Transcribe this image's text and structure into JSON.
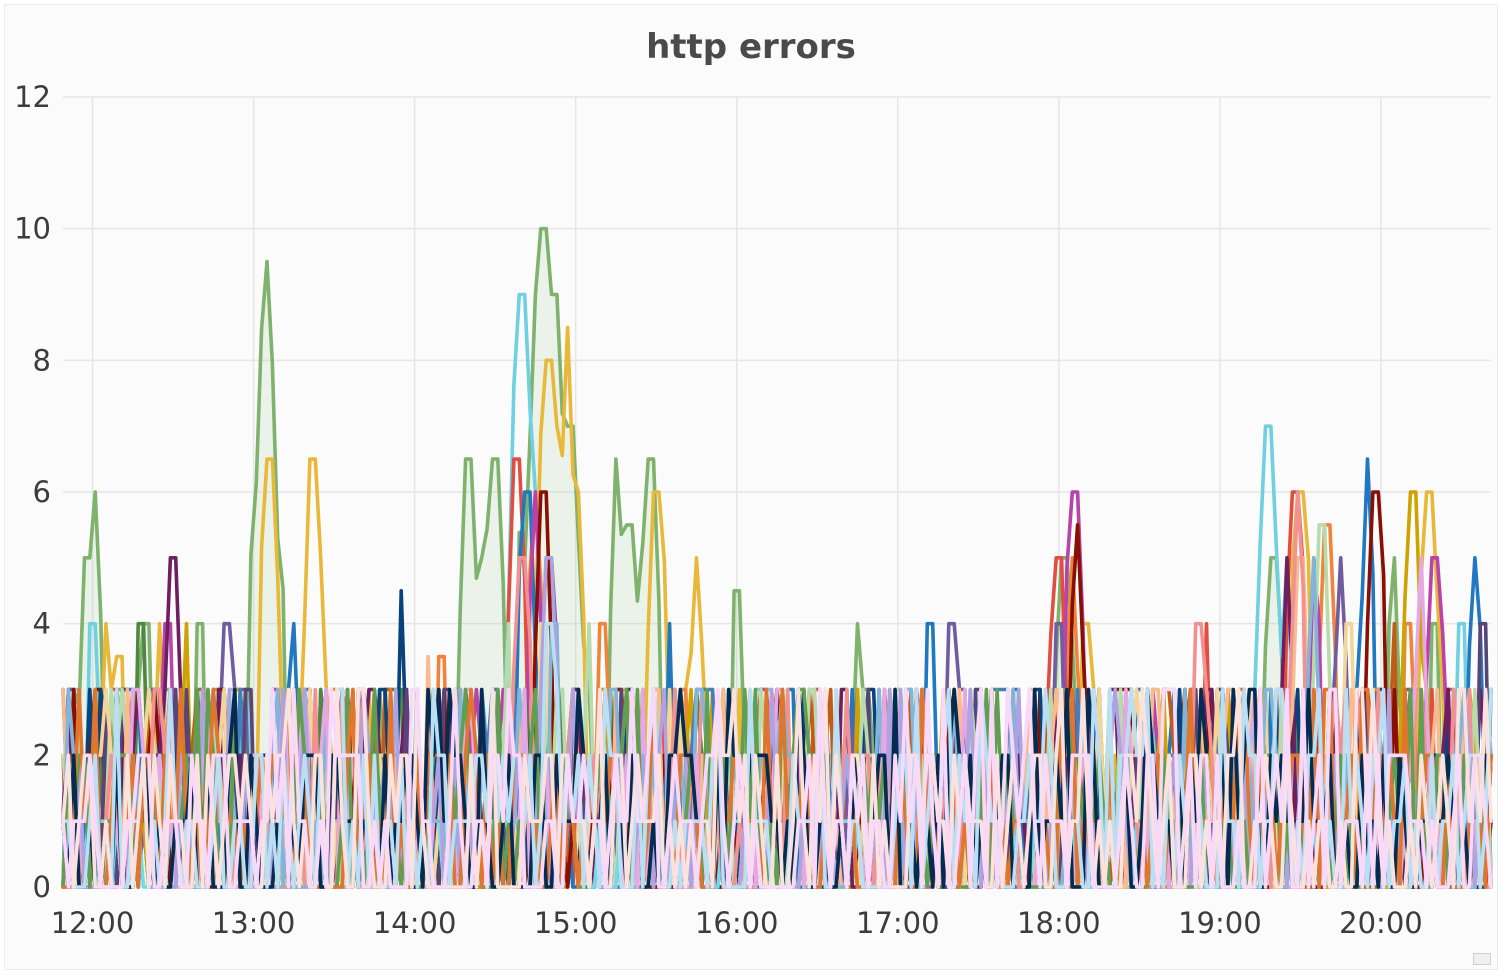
{
  "panel": {
    "title": "http errors"
  },
  "chart_data": {
    "type": "line",
    "title": "http errors",
    "xlabel": "",
    "ylabel": "",
    "ylim": [
      0,
      12
    ],
    "yticks": [
      0,
      2,
      4,
      6,
      8,
      10,
      12
    ],
    "xlim": [
      "11:49",
      "20:41"
    ],
    "xticks": [
      "12:00",
      "13:00",
      "14:00",
      "15:00",
      "16:00",
      "17:00",
      "18:00",
      "19:00",
      "20:00"
    ],
    "grid": true,
    "legend": "none",
    "series_count_note_hidden": true,
    "series": [
      {
        "color": "#7eb26d",
        "fill": true,
        "peaks": [
          [
            "11:53",
            3
          ],
          [
            "11:55",
            2
          ],
          [
            "11:58",
            5
          ],
          [
            "12:01",
            6
          ],
          [
            "12:03",
            4
          ],
          [
            "12:10",
            3
          ],
          [
            "12:20",
            4
          ],
          [
            "12:30",
            3
          ],
          [
            "12:40",
            4
          ],
          [
            "12:50",
            2
          ],
          [
            "13:05",
            9.5
          ],
          [
            "13:10",
            3
          ],
          [
            "14:20",
            6.5
          ],
          [
            "14:25",
            5
          ],
          [
            "14:30",
            6.5
          ],
          [
            "14:45",
            9
          ],
          [
            "14:48",
            10
          ],
          [
            "14:52",
            9
          ],
          [
            "14:58",
            7
          ],
          [
            "15:05",
            3
          ],
          [
            "15:15",
            6.5
          ],
          [
            "15:20",
            5.5
          ],
          [
            "15:28",
            6.5
          ],
          [
            "15:35",
            3
          ],
          [
            "16:00",
            4.5
          ],
          [
            "16:05",
            3
          ],
          [
            "16:45",
            4
          ],
          [
            "18:02",
            5
          ],
          [
            "19:20",
            5
          ],
          [
            "20:05",
            5
          ],
          [
            "20:20",
            4
          ]
        ]
      },
      {
        "color": "#eab839",
        "fill": false,
        "peaks": [
          [
            "12:05",
            4
          ],
          [
            "12:10",
            3.5
          ],
          [
            "12:25",
            4
          ],
          [
            "13:06",
            6.5
          ],
          [
            "13:15",
            3
          ],
          [
            "13:22",
            6.5
          ],
          [
            "13:25",
            5
          ],
          [
            "14:50",
            8
          ],
          [
            "14:53",
            7
          ],
          [
            "14:57",
            8.5
          ],
          [
            "15:00",
            6
          ],
          [
            "15:30",
            6
          ],
          [
            "15:45",
            5
          ],
          [
            "17:00",
            3
          ],
          [
            "18:10",
            4
          ],
          [
            "19:30",
            6
          ],
          [
            "20:18",
            6
          ]
        ]
      },
      {
        "color": "#6ed0e0",
        "fill": false,
        "peaks": [
          [
            "12:00",
            4
          ],
          [
            "12:20",
            1
          ],
          [
            "14:40",
            9
          ],
          [
            "14:45",
            6
          ],
          [
            "16:10",
            3
          ],
          [
            "17:10",
            3
          ],
          [
            "18:35",
            3
          ],
          [
            "19:18",
            7
          ],
          [
            "19:25",
            5
          ],
          [
            "20:30",
            4
          ]
        ]
      },
      {
        "color": "#ef843c",
        "fill": false,
        "peaks": [
          [
            "12:15",
            3
          ],
          [
            "13:30",
            3
          ],
          [
            "14:10",
            3.5
          ],
          [
            "14:45",
            6
          ],
          [
            "15:10",
            4
          ],
          [
            "15:40",
            3
          ],
          [
            "17:20",
            2
          ],
          [
            "18:05",
            5
          ],
          [
            "18:50",
            3
          ],
          [
            "19:40",
            5.5
          ],
          [
            "20:10",
            4
          ]
        ]
      },
      {
        "color": "#e24d42",
        "fill": false,
        "peaks": [
          [
            "12:08",
            3
          ],
          [
            "12:45",
            3
          ],
          [
            "14:38",
            6.5
          ],
          [
            "15:25",
            3
          ],
          [
            "16:30",
            3
          ],
          [
            "18:00",
            5
          ],
          [
            "18:55",
            4
          ],
          [
            "19:28",
            6
          ],
          [
            "20:25",
            3
          ]
        ]
      },
      {
        "color": "#1f78c1",
        "fill": false,
        "peaks": [
          [
            "12:12",
            3
          ],
          [
            "12:55",
            2
          ],
          [
            "13:15",
            4
          ],
          [
            "14:42",
            6
          ],
          [
            "15:35",
            4
          ],
          [
            "16:20",
            3
          ],
          [
            "17:12",
            4
          ],
          [
            "18:30",
            3
          ],
          [
            "19:05",
            3
          ],
          [
            "19:55",
            6.5
          ],
          [
            "20:35",
            5
          ]
        ]
      },
      {
        "color": "#ba43a9",
        "fill": false,
        "peaks": [
          [
            "12:28",
            4
          ],
          [
            "13:08",
            3
          ],
          [
            "14:45",
            6
          ],
          [
            "15:30",
            3
          ],
          [
            "16:10",
            3
          ],
          [
            "18:06",
            6
          ],
          [
            "19:35",
            5
          ],
          [
            "20:20",
            5
          ]
        ]
      },
      {
        "color": "#705da0",
        "fill": false,
        "peaks": [
          [
            "12:02",
            2
          ],
          [
            "12:50",
            4
          ],
          [
            "14:15",
            3
          ],
          [
            "14:50",
            5
          ],
          [
            "16:45",
            3
          ],
          [
            "17:20",
            4
          ],
          [
            "18:00",
            4
          ],
          [
            "19:45",
            5
          ]
        ]
      },
      {
        "color": "#508642",
        "fill": false,
        "peaks": [
          [
            "12:18",
            4
          ],
          [
            "13:25",
            3
          ],
          [
            "14:55",
            3
          ],
          [
            "15:45",
            3
          ],
          [
            "17:35",
            3
          ],
          [
            "19:15",
            3
          ]
        ]
      },
      {
        "color": "#cca300",
        "fill": false,
        "peaks": [
          [
            "12:35",
            4
          ],
          [
            "13:40",
            3
          ],
          [
            "15:10",
            3
          ],
          [
            "16:25",
            3
          ],
          [
            "18:15",
            3
          ],
          [
            "20:12",
            6
          ]
        ]
      },
      {
        "color": "#447ebc",
        "fill": false,
        "peaks": [
          [
            "12:22",
            3
          ],
          [
            "13:20",
            3
          ],
          [
            "14:30",
            3
          ],
          [
            "15:50",
            3
          ],
          [
            "17:40",
            3
          ],
          [
            "19:50",
            3
          ]
        ]
      },
      {
        "color": "#c15c17",
        "fill": false,
        "peaks": [
          [
            "12:40",
            3
          ],
          [
            "13:50",
            3
          ],
          [
            "14:48",
            3
          ],
          [
            "16:35",
            3
          ],
          [
            "18:40",
            3
          ],
          [
            "20:05",
            4
          ]
        ]
      },
      {
        "color": "#890f02",
        "fill": false,
        "peaks": [
          [
            "12:48",
            3
          ],
          [
            "13:35",
            3
          ],
          [
            "14:48",
            6
          ],
          [
            "16:15",
            3
          ],
          [
            "18:07",
            5.5
          ],
          [
            "19:58",
            6
          ]
        ]
      },
      {
        "color": "#0a437c",
        "fill": false,
        "peaks": [
          [
            "12:05",
            2.5
          ],
          [
            "13:55",
            4.5
          ],
          [
            "15:20",
            3
          ],
          [
            "16:50",
            3
          ],
          [
            "18:25",
            2
          ],
          [
            "20:00",
            3
          ]
        ]
      },
      {
        "color": "#6d1f62",
        "fill": false,
        "peaks": [
          [
            "12:30",
            5
          ],
          [
            "13:45",
            3
          ],
          [
            "15:00",
            3
          ],
          [
            "16:40",
            3
          ],
          [
            "18:20",
            3
          ],
          [
            "19:25",
            5
          ]
        ]
      },
      {
        "color": "#584477",
        "fill": false,
        "peaks": [
          [
            "12:58",
            3
          ],
          [
            "14:12",
            3
          ],
          [
            "15:55",
            3
          ],
          [
            "17:30",
            3
          ],
          [
            "19:00",
            3
          ],
          [
            "20:38",
            4
          ]
        ]
      },
      {
        "color": "#b7dbab",
        "fill": false,
        "peaks": [
          [
            "12:10",
            2
          ],
          [
            "14:35",
            4
          ],
          [
            "15:05",
            4
          ],
          [
            "17:00",
            3
          ],
          [
            "19:38",
            5.5
          ]
        ]
      },
      {
        "color": "#f4d598",
        "fill": false,
        "peaks": [
          [
            "12:03",
            2
          ],
          [
            "14:48",
            4
          ],
          [
            "16:05",
            3
          ],
          [
            "19:48",
            4
          ]
        ]
      },
      {
        "color": "#70dbed",
        "fill": false,
        "peaks": [
          [
            "12:00",
            1
          ],
          [
            "13:00",
            1
          ],
          [
            "14:00",
            1
          ],
          [
            "15:00",
            1
          ],
          [
            "16:00",
            1
          ],
          [
            "17:00",
            1
          ],
          [
            "18:00",
            1
          ],
          [
            "19:00",
            1
          ],
          [
            "20:00",
            1
          ]
        ]
      },
      {
        "color": "#f9ba8f",
        "fill": false,
        "peaks": [
          [
            "12:20",
            2
          ],
          [
            "14:05",
            3.5
          ],
          [
            "15:30",
            3
          ],
          [
            "17:50",
            3
          ],
          [
            "19:30",
            5
          ]
        ]
      },
      {
        "color": "#f29191",
        "fill": false,
        "peaks": [
          [
            "12:25",
            3
          ],
          [
            "14:40",
            5
          ],
          [
            "16:30",
            2
          ],
          [
            "18:52",
            4
          ],
          [
            "19:29",
            6
          ]
        ]
      },
      {
        "color": "#82b5d8",
        "fill": false,
        "peaks": [
          [
            "12:45",
            3
          ],
          [
            "14:52",
            4
          ],
          [
            "17:05",
            3
          ],
          [
            "19:35",
            5
          ]
        ]
      },
      {
        "color": "#e5a8e2",
        "fill": false,
        "peaks": [
          [
            "12:15",
            3
          ],
          [
            "14:20",
            3
          ],
          [
            "16:55",
            3
          ],
          [
            "20:15",
            5
          ]
        ]
      },
      {
        "color": "#aea2e0",
        "fill": false,
        "peaks": [
          [
            "12:52",
            3
          ],
          [
            "14:50",
            5
          ],
          [
            "17:45",
            3
          ],
          [
            "20:30",
            3
          ]
        ]
      },
      {
        "color": "#629e51",
        "fill": false,
        "peaks": [
          [
            "12:10",
            2
          ],
          [
            "15:10",
            2
          ],
          [
            "18:02",
            3
          ],
          [
            "20:40",
            2
          ]
        ]
      },
      {
        "color": "#e0752d",
        "fill": false,
        "peaks": [
          [
            "13:10",
            2
          ],
          [
            "15:40",
            2
          ],
          [
            "19:08",
            3
          ]
        ]
      },
      {
        "color": "#052b51",
        "fill": false,
        "peaks": [
          [
            "13:30",
            2
          ],
          [
            "16:00",
            2
          ],
          [
            "19:12",
            3
          ]
        ]
      },
      {
        "color": "#badff4",
        "fill": false,
        "peaks": [
          [
            "14:10",
            2
          ],
          [
            "14:50",
            4
          ],
          [
            "18:45",
            2
          ]
        ]
      },
      {
        "color": "#fce2de",
        "fill": false,
        "peaks": [
          [
            "13:40",
            3
          ],
          [
            "16:45",
            2
          ],
          [
            "19:52",
            3
          ]
        ]
      },
      {
        "color": "#f9d9f9",
        "fill": false,
        "peaks": [
          [
            "14:00",
            3
          ],
          [
            "17:55",
            2
          ]
        ]
      }
    ]
  }
}
